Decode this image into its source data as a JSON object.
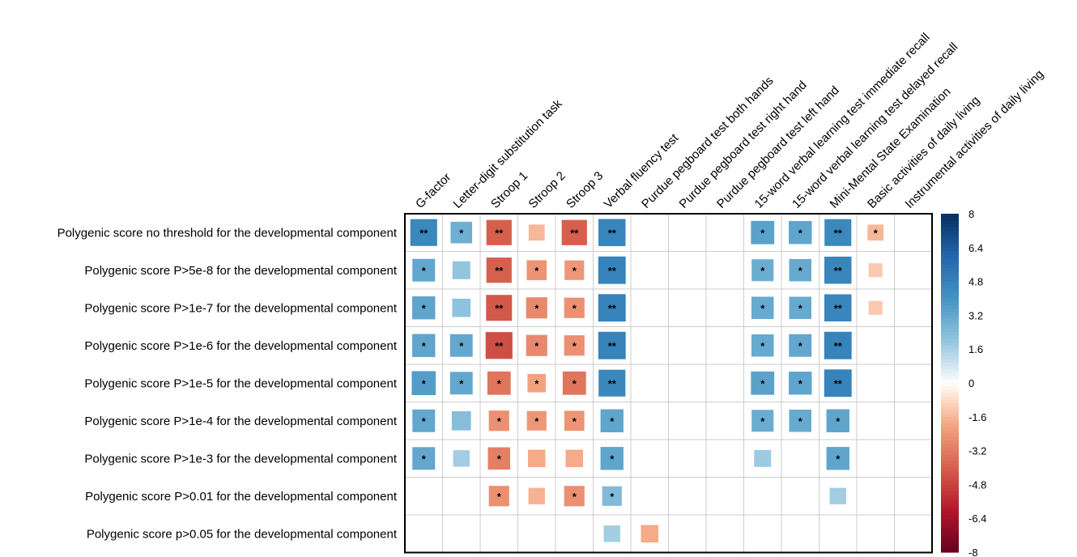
{
  "chart_data": {
    "type": "heatmap",
    "columns": [
      "G-factor",
      "Letter-digit substitution task",
      "Stroop 1",
      "Stroop 2",
      "Stroop 3",
      "Verbal fluency test",
      "Purdue pegboard test both hands",
      "Purdue pegboard test right hand",
      "Purdue pegboard test left hand",
      "15-word verbal learning test immediate recall",
      "15-word verbal learning test delayed recall",
      "Mini-Mental State Examination",
      "Basic activities of daily living",
      "Instrumental activities of daily living"
    ],
    "rows": [
      "Polygenic score no threshold for the developmental component",
      "Polygenic score P>5e-8 for the developmental component",
      "Polygenic score P>1e-7 for the developmental component",
      "Polygenic score P>1e-6 for the developmental component",
      "Polygenic score P>1e-5 for the developmental component",
      "Polygenic score P>1e-4 for the developmental component",
      "Polygenic score P>1e-3 for the developmental component",
      "Polygenic score P>0.01 for the developmental component",
      "Polygenic score p>0.05 for the developmental component"
    ],
    "values": [
      [
        4.5,
        2.9,
        -4.0,
        -1.6,
        -4.0,
        4.6,
        null,
        null,
        null,
        3.4,
        3.3,
        4.5,
        -1.6,
        null
      ],
      [
        3.2,
        2.0,
        -4.0,
        -2.5,
        -2.4,
        4.7,
        null,
        null,
        null,
        3.0,
        3.1,
        4.6,
        -1.2,
        null
      ],
      [
        3.3,
        2.1,
        -4.2,
        -2.8,
        -2.6,
        4.7,
        null,
        null,
        null,
        3.1,
        3.1,
        4.6,
        -1.2,
        null
      ],
      [
        3.3,
        3.2,
        -4.5,
        -2.8,
        -2.6,
        4.7,
        null,
        null,
        null,
        3.1,
        3.2,
        4.7,
        null,
        null
      ],
      [
        3.6,
        3.2,
        -3.4,
        -2.1,
        -3.4,
        4.5,
        null,
        null,
        null,
        3.4,
        3.3,
        4.7,
        null,
        null
      ],
      [
        3.2,
        2.3,
        -2.6,
        -2.4,
        -2.5,
        3.3,
        null,
        null,
        null,
        3.0,
        3.1,
        3.3,
        null,
        null
      ],
      [
        3.2,
        1.7,
        -3.1,
        -1.9,
        -1.9,
        3.3,
        null,
        null,
        null,
        1.8,
        null,
        3.3,
        null,
        null
      ],
      [
        null,
        null,
        -2.6,
        -1.7,
        -2.6,
        2.4,
        null,
        null,
        null,
        null,
        null,
        1.7,
        null,
        null
      ],
      [
        null,
        null,
        null,
        null,
        null,
        1.7,
        -1.9,
        null,
        null,
        null,
        null,
        null,
        null,
        null
      ]
    ],
    "stars": [
      [
        "**",
        "*",
        "**",
        "",
        "**",
        "**",
        "",
        "",
        "",
        "*",
        "*",
        "**",
        "*",
        ""
      ],
      [
        "*",
        "",
        "**",
        "*",
        "*",
        "**",
        "",
        "",
        "",
        "*",
        "*",
        "**",
        "",
        ""
      ],
      [
        "*",
        "",
        "**",
        "*",
        "*",
        "**",
        "",
        "",
        "",
        "*",
        "*",
        "**",
        "",
        ""
      ],
      [
        "*",
        "*",
        "**",
        "*",
        "*",
        "**",
        "",
        "",
        "",
        "*",
        "*",
        "**",
        "",
        ""
      ],
      [
        "*",
        "*",
        "*",
        "*",
        "*",
        "**",
        "",
        "",
        "",
        "*",
        "*",
        "**",
        "",
        ""
      ],
      [
        "*",
        "",
        "*",
        "*",
        "*",
        "*",
        "",
        "",
        "",
        "*",
        "*",
        "*",
        "",
        ""
      ],
      [
        "*",
        "",
        "*",
        "",
        "",
        "*",
        "",
        "",
        "",
        "",
        "",
        "*",
        "",
        ""
      ],
      [
        "",
        "",
        "*",
        "",
        "*",
        "*",
        "",
        "",
        "",
        "",
        "",
        "",
        "",
        ""
      ],
      [
        "",
        "",
        "",
        "",
        "",
        "",
        "",
        "",
        "",
        "",
        "",
        "",
        "",
        ""
      ]
    ],
    "colorbar": {
      "min": -8,
      "max": 8,
      "ticks": [
        "8",
        "6.4",
        "4.8",
        "3.2",
        "1.6",
        "0",
        "-1.6",
        "-3.2",
        "-4.8",
        "-6.4",
        "-8"
      ]
    },
    "colors": {
      "neg_strong": "#67001f",
      "neg_mid": "#d6604d",
      "neg_light": "#fddbc7",
      "neutral": "#ffffff",
      "pos_light": "#d1e5f0",
      "pos_mid": "#4393c3",
      "pos_strong": "#053061",
      "grid": "#cccccc",
      "border": "#000000"
    }
  }
}
